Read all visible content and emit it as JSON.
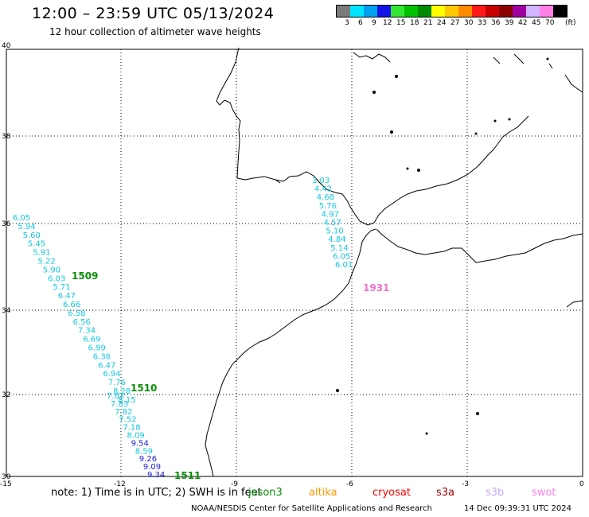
{
  "header": {
    "title": "12:00 – 23:59 UTC 05/13/2024",
    "subtitle": "12 hour collection of altimeter wave heights"
  },
  "legend": {
    "unit": "(ft)",
    "bins": [
      {
        "label": "3",
        "color": "#7a7a7a"
      },
      {
        "label": "6",
        "color": "#00e5ff"
      },
      {
        "label": "9",
        "color": "#00a0f0"
      },
      {
        "label": "12",
        "color": "#1414e6"
      },
      {
        "label": "15",
        "color": "#33e633"
      },
      {
        "label": "18",
        "color": "#00c000"
      },
      {
        "label": "21",
        "color": "#008a00"
      },
      {
        "label": "24",
        "color": "#ffff00"
      },
      {
        "label": "27",
        "color": "#ffc800"
      },
      {
        "label": "30",
        "color": "#ff8c00"
      },
      {
        "label": "33",
        "color": "#ff1a1a"
      },
      {
        "label": "36",
        "color": "#c80000"
      },
      {
        "label": "39",
        "color": "#8c0000"
      },
      {
        "label": "42",
        "color": "#a000a0"
      },
      {
        "label": "45",
        "color": "#d2b4ff"
      },
      {
        "label": "70",
        "color": "#ff80e6"
      },
      {
        "label": "",
        "color": "#000000"
      }
    ]
  },
  "map": {
    "lat_labels": [
      "40",
      "38",
      "36",
      "34",
      "32",
      "30"
    ],
    "lon_labels": [
      "-15",
      "-12",
      "-9",
      "-6",
      "-3",
      "0"
    ],
    "pass_1509": {
      "label": "1509",
      "values": [
        "6.05",
        "5.94",
        "5.60",
        "5.45",
        "5.91",
        "5.22",
        "5.90",
        "6.03",
        "5.71",
        "6.47",
        "6.66",
        "6.58",
        "6.56",
        "7.34",
        "6.69",
        "6.99",
        "6.38",
        "6.47",
        "6.94",
        "7.76",
        "8.28",
        "8.15"
      ]
    },
    "pass_1510": {
      "label": "1510",
      "values": [
        "7.63",
        "7.83",
        "7.82",
        "7.52",
        "7.18",
        "8.09",
        "9.54",
        "8.59",
        "9.26",
        "9.09",
        "9.34"
      ]
    },
    "pass_1511": {
      "label": "1511"
    },
    "pass_1931": {
      "label": "1931",
      "values": [
        "3.03",
        "4.42",
        "4.68",
        "5.76",
        "4.97",
        "4.57",
        "5.10",
        "4.84",
        "5.14",
        "6.05",
        "6.01"
      ]
    }
  },
  "note": {
    "text": "note:  1) Time is in UTC;  2) SWH is in feet",
    "satellites": [
      {
        "name": "jason3",
        "color": "#0a8f0a"
      },
      {
        "name": "altika",
        "color": "#ff9900"
      },
      {
        "name": "cryosat",
        "color": "#ff0000"
      },
      {
        "name": "s3a",
        "color": "#9a0000"
      },
      {
        "name": "s3b",
        "color": "#c8a8ff"
      },
      {
        "name": "swot",
        "color": "#ff80e6"
      }
    ]
  },
  "footer": {
    "credit": "NOAA/NESDIS Center for Satellite Applications and Research",
    "timestamp": "14 Dec 09:39:31 UTC 2024"
  }
}
